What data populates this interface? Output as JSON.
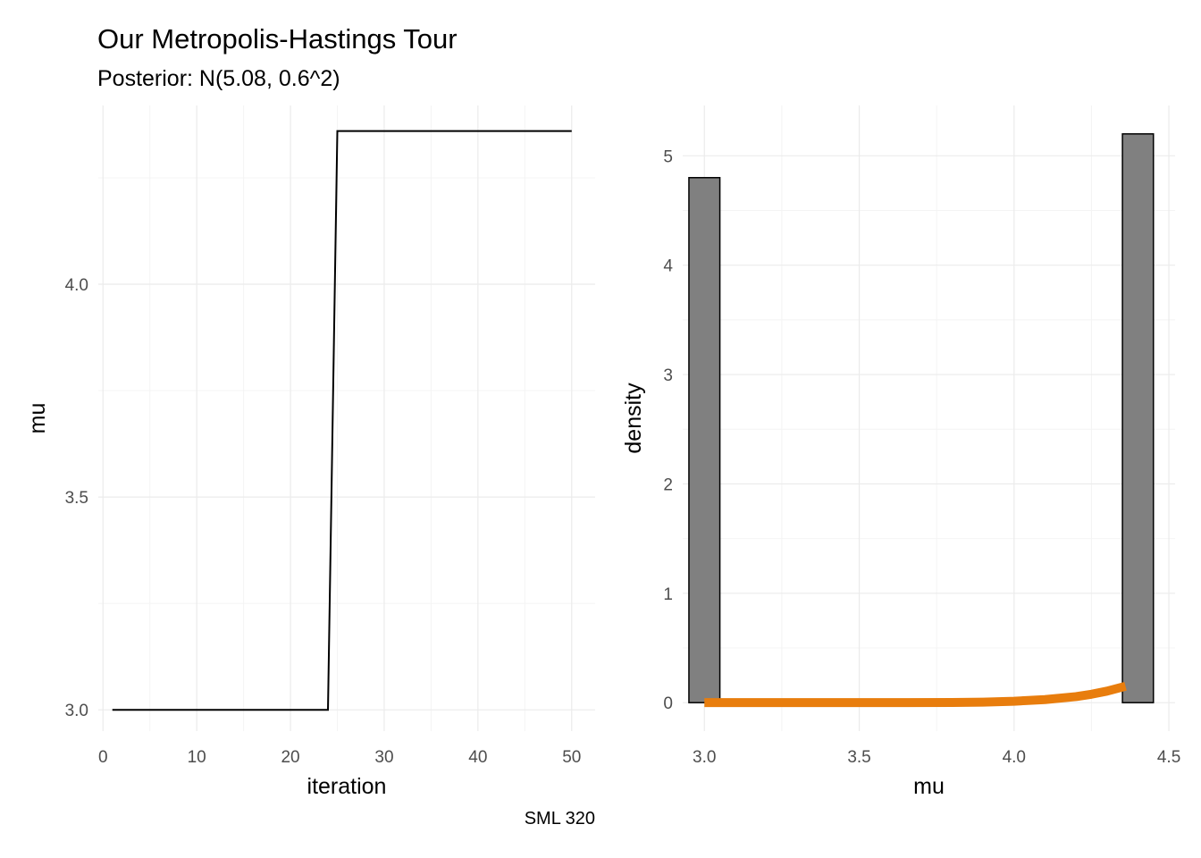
{
  "header": {
    "title": "Our Metropolis-Hastings Tour",
    "subtitle": "Posterior: N(5.08, 0.6^2)",
    "caption": "SML 320"
  },
  "colors": {
    "trace_line": "#000000",
    "bar_fill": "#808080",
    "bar_stroke": "#000000",
    "density_curve": "#E87D0D",
    "grid_major": "#EBEBEB",
    "grid_minor": "#F4F4F4"
  },
  "chart_data": [
    {
      "type": "line",
      "title": "",
      "xlabel": "iteration",
      "ylabel": "mu",
      "xlim": [
        -0.5,
        52.5
      ],
      "ylim": [
        2.95,
        4.42
      ],
      "xticks": [
        0,
        10,
        20,
        30,
        40,
        50
      ],
      "xtick_labels": [
        "0",
        "10",
        "20",
        "30",
        "40",
        "50"
      ],
      "yticks": [
        3.0,
        3.5,
        4.0
      ],
      "ytick_labels": [
        "3.0",
        "3.5",
        "4.0"
      ],
      "grid": true,
      "series": [
        {
          "x": [
            1,
            24,
            25,
            50
          ],
          "y": [
            3.0,
            3.0,
            4.36,
            4.36
          ]
        }
      ]
    },
    {
      "type": "bar",
      "title": "",
      "xlabel": "mu",
      "ylabel": "density",
      "xlim": [
        2.93,
        4.52
      ],
      "ylim": [
        -0.26,
        5.46
      ],
      "xticks": [
        3.0,
        3.5,
        4.0,
        4.5
      ],
      "xtick_labels": [
        "3.0",
        "3.5",
        "4.0",
        "4.5"
      ],
      "yticks": [
        0,
        1,
        2,
        3,
        4,
        5
      ],
      "ytick_labels": [
        "0",
        "1",
        "2",
        "3",
        "4",
        "5"
      ],
      "grid": true,
      "bars": [
        {
          "x_start": 2.95,
          "x_end": 3.05,
          "value": 4.8
        },
        {
          "x_start": 4.35,
          "x_end": 4.45,
          "value": 5.2
        }
      ],
      "curve": {
        "x": [
          3.0,
          3.2,
          3.4,
          3.6,
          3.8,
          3.9,
          4.0,
          4.1,
          4.2,
          4.25,
          4.3,
          4.36
        ],
        "y": [
          0.0,
          0.0,
          0.0,
          0.0,
          0.001,
          0.005,
          0.013,
          0.028,
          0.055,
          0.077,
          0.105,
          0.15
        ]
      }
    }
  ]
}
